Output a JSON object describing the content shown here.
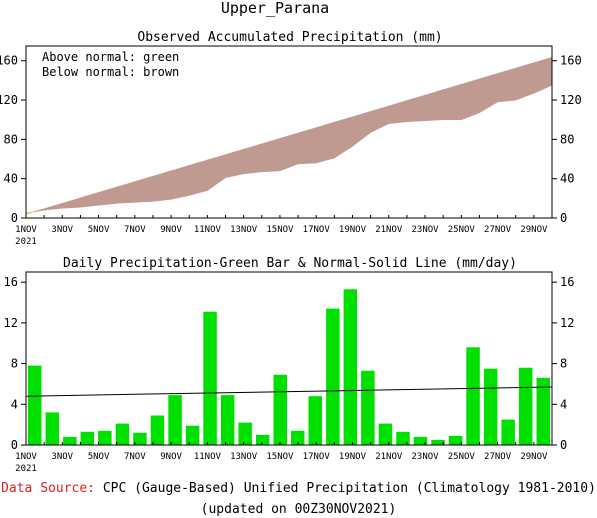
{
  "page_title": "Upper_Parana",
  "footer": {
    "source_label": "Data Source:",
    "source_text": "CPC (Gauge-Based) Unified Precipitation (Climatology 1981-2010)",
    "updated": "(updated on 00Z30NOV2021)"
  },
  "colors": {
    "above_normal": "#7fdc5a",
    "below_normal": "#c09a90",
    "daily_bar": "#00e000",
    "normal_line": "#000000",
    "source_label": "#e02020"
  },
  "chart_data": [
    {
      "type": "area",
      "title": "Observed Accumulated Precipitation (mm)",
      "annotations": [
        "Above normal: green",
        "Below normal: brown"
      ],
      "x": [
        "1NOV",
        "2NOV",
        "3NOV",
        "4NOV",
        "5NOV",
        "6NOV",
        "7NOV",
        "8NOV",
        "9NOV",
        "10NOV",
        "11NOV",
        "12NOV",
        "13NOV",
        "14NOV",
        "15NOV",
        "16NOV",
        "17NOV",
        "18NOV",
        "19NOV",
        "20NOV",
        "21NOV",
        "22NOV",
        "23NOV",
        "24NOV",
        "25NOV",
        "26NOV",
        "27NOV",
        "28NOV",
        "29NOV",
        "30NOV"
      ],
      "xtick_labels": [
        "1NOV",
        "3NOV",
        "5NOV",
        "7NOV",
        "9NOV",
        "11NOV",
        "13NOV",
        "15NOV",
        "17NOV",
        "19NOV",
        "21NOV",
        "23NOV",
        "25NOV",
        "27NOV",
        "29NOV"
      ],
      "year_label": "2021",
      "ylim": [
        0,
        175
      ],
      "yticks": [
        0,
        40,
        80,
        120,
        160
      ],
      "grid": false,
      "series": [
        {
          "name": "observed",
          "values": [
            5,
            8,
            10,
            11,
            13,
            15,
            16,
            17,
            19,
            23,
            28,
            41,
            45,
            47,
            48,
            55,
            56,
            61,
            73,
            87,
            96,
            98,
            99,
            100,
            100,
            107,
            118,
            120,
            127,
            135
          ]
        },
        {
          "name": "normal",
          "values": [
            4,
            9.5,
            15,
            20.5,
            26,
            31.5,
            37,
            42.5,
            48,
            53.5,
            59,
            64.5,
            70,
            75.5,
            81,
            86.5,
            92,
            97.5,
            103,
            108.5,
            114,
            119.5,
            125,
            130.5,
            136,
            141.5,
            147,
            152.5,
            158,
            163.5
          ]
        }
      ]
    },
    {
      "type": "bar",
      "title": "Daily Precipitation-Green Bar & Normal-Solid Line (mm/day)",
      "x": [
        "1NOV",
        "2NOV",
        "3NOV",
        "4NOV",
        "5NOV",
        "6NOV",
        "7NOV",
        "8NOV",
        "9NOV",
        "10NOV",
        "11NOV",
        "12NOV",
        "13NOV",
        "14NOV",
        "15NOV",
        "16NOV",
        "17NOV",
        "18NOV",
        "19NOV",
        "20NOV",
        "21NOV",
        "22NOV",
        "23NOV",
        "24NOV",
        "25NOV",
        "26NOV",
        "27NOV",
        "28NOV",
        "29NOV",
        "30NOV"
      ],
      "xtick_labels": [
        "1NOV",
        "3NOV",
        "5NOV",
        "7NOV",
        "9NOV",
        "11NOV",
        "13NOV",
        "15NOV",
        "17NOV",
        "19NOV",
        "21NOV",
        "23NOV",
        "25NOV",
        "27NOV",
        "29NOV"
      ],
      "year_label": "2021",
      "ylim": [
        0,
        17
      ],
      "yticks": [
        0,
        4,
        8,
        12,
        16
      ],
      "grid": false,
      "values": [
        7.8,
        3.2,
        0.8,
        1.3,
        1.4,
        2.1,
        1.2,
        2.9,
        4.9,
        1.9,
        13.1,
        4.9,
        2.2,
        1.0,
        6.9,
        1.4,
        4.8,
        13.4,
        15.3,
        7.3,
        2.1,
        1.3,
        0.8,
        0.5,
        0.9,
        9.6,
        7.5,
        2.5,
        7.6,
        6.6
      ],
      "normal": [
        4.8,
        5.7
      ]
    }
  ]
}
